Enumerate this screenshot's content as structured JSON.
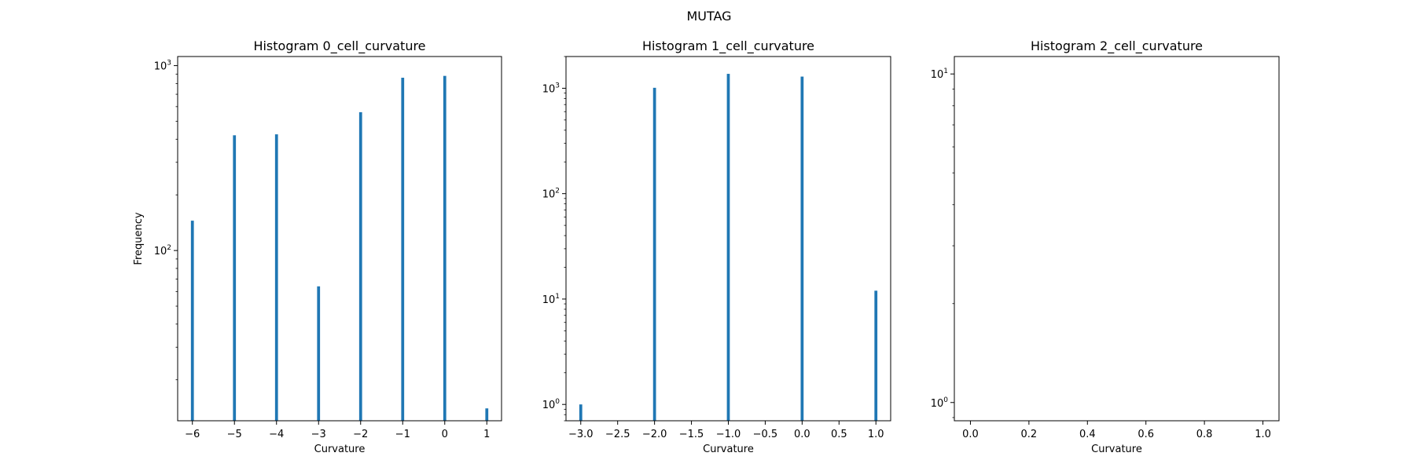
{
  "figure": {
    "suptitle": "MUTAG"
  },
  "style": {
    "bar_color": "#1f77b4",
    "axis_color": "#000000",
    "background": "#ffffff"
  },
  "chart_data": [
    {
      "type": "bar",
      "title": "Histogram 0_cell_curvature",
      "xlabel": "Curvature",
      "ylabel": "Frequency",
      "yscale": "log",
      "xlim": [
        -6.35,
        1.35
      ],
      "ylim": [
        12,
        1120
      ],
      "grid": false,
      "bar_width": 0.07,
      "xticks": [
        -6,
        -5,
        -4,
        -3,
        -2,
        -1,
        0,
        1
      ],
      "xtick_labels": [
        "−6",
        "−5",
        "−4",
        "−3",
        "−2",
        "−1",
        "0",
        "1"
      ],
      "yticks": [
        {
          "value": 100,
          "base": "10",
          "exp": "2"
        },
        {
          "value": 1000,
          "base": "10",
          "exp": "3"
        }
      ],
      "bars": [
        {
          "x": -6,
          "y": 145
        },
        {
          "x": -5,
          "y": 420
        },
        {
          "x": -4,
          "y": 425
        },
        {
          "x": -3,
          "y": 64
        },
        {
          "x": -2,
          "y": 560
        },
        {
          "x": -1,
          "y": 860
        },
        {
          "x": 0,
          "y": 880
        },
        {
          "x": 1,
          "y": 14
        }
      ]
    },
    {
      "type": "bar",
      "title": "Histogram 1_cell_curvature",
      "xlabel": "Curvature",
      "ylabel": "",
      "yscale": "log",
      "xlim": [
        -3.2,
        1.2
      ],
      "ylim": [
        0.7,
        2000
      ],
      "grid": false,
      "bar_width": 0.04,
      "xticks": [
        -3.0,
        -2.5,
        -2.0,
        -1.5,
        -1.0,
        -0.5,
        0.0,
        0.5,
        1.0
      ],
      "xtick_labels": [
        "−3.0",
        "−2.5",
        "−2.0",
        "−1.5",
        "−1.0",
        "−0.5",
        "0.0",
        "0.5",
        "1.0"
      ],
      "yticks": [
        {
          "value": 1,
          "base": "10",
          "exp": "0"
        },
        {
          "value": 10,
          "base": "10",
          "exp": "1"
        },
        {
          "value": 100,
          "base": "10",
          "exp": "2"
        },
        {
          "value": 1000,
          "base": "10",
          "exp": "3"
        }
      ],
      "bars": [
        {
          "x": -3,
          "y": 1
        },
        {
          "x": -2,
          "y": 1010
        },
        {
          "x": -1,
          "y": 1370
        },
        {
          "x": 0,
          "y": 1290
        },
        {
          "x": 1,
          "y": 12
        }
      ]
    },
    {
      "type": "bar",
      "title": "Histogram 2_cell_curvature",
      "xlabel": "Curvature",
      "ylabel": "",
      "yscale": "log",
      "xlim": [
        -0.055,
        1.055
      ],
      "ylim": [
        0.88,
        11.3
      ],
      "grid": false,
      "bar_width": 0.01,
      "xticks": [
        0.0,
        0.2,
        0.4,
        0.6,
        0.8,
        1.0
      ],
      "xtick_labels": [
        "0.0",
        "0.2",
        "0.4",
        "0.6",
        "0.8",
        "1.0"
      ],
      "yticks": [
        {
          "value": 1,
          "base": "10",
          "exp": "0"
        },
        {
          "value": 10,
          "base": "10",
          "exp": "1"
        }
      ],
      "bars": []
    }
  ]
}
